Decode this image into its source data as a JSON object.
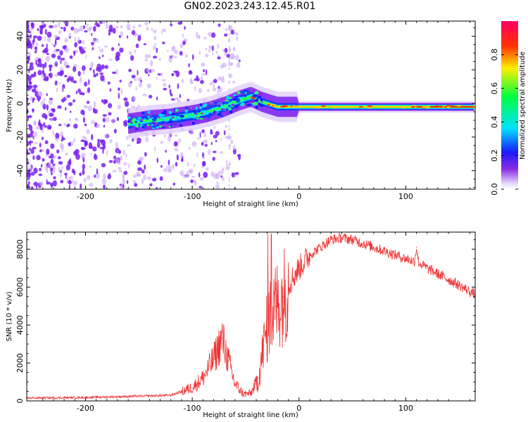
{
  "title": "GN02.2023.243.12.45.R01",
  "colors": {
    "band_main": "#7a1ff0",
    "band_edge": "#c9a8f7",
    "snr_line": "#ee3333",
    "colorbar": [
      "#e8e0ff",
      "#8a2be2",
      "#1a1aff",
      "#00e0ff",
      "#00ff40",
      "#ffee00",
      "#ff3300",
      "#ff0066"
    ]
  },
  "chart_data": [
    {
      "type": "heatmap",
      "id": "spectrogram",
      "title": "",
      "xlabel": "Height of straight line (km)",
      "ylabel": "Frequency (Hz)",
      "xlim": [
        -255,
        165
      ],
      "ylim": [
        -51,
        49
      ],
      "xticks": [
        -200,
        -100,
        0,
        100
      ],
      "yticks": [
        -40,
        -20,
        0,
        20,
        40
      ],
      "colorbar": {
        "label": "Normalized spectral amplitude",
        "range": [
          0,
          1
        ],
        "ticks": [
          0.0,
          0.2,
          0.4,
          0.6,
          0.8
        ]
      },
      "ridge_km": [
        -160,
        -140,
        -120,
        -100,
        -85,
        -70,
        -55,
        -45,
        -35,
        -20,
        0,
        40,
        80,
        100,
        120,
        165
      ],
      "ridge_hz": [
        -12,
        -10,
        -9,
        -7,
        -5,
        -2,
        2,
        4,
        1,
        -2,
        -2,
        -2,
        -2,
        -2,
        -2,
        -2
      ]
    },
    {
      "type": "line",
      "id": "snr",
      "title": "",
      "xlabel": "Height of straight line (km)",
      "ylabel": "SNR (10 * v/v)",
      "xlim": [
        -255,
        165
      ],
      "ylim": [
        0,
        8900
      ],
      "xticks": [
        -200,
        -100,
        0,
        100
      ],
      "yticks": [
        0,
        2000,
        4000,
        6000,
        8000
      ],
      "series": [
        {
          "name": "SNR",
          "x": [
            -255,
            -200,
            -150,
            -120,
            -100,
            -90,
            -80,
            -72,
            -66,
            -60,
            -52,
            -45,
            -38,
            -32,
            -28,
            -22,
            -15,
            -8,
            0,
            10,
            20,
            30,
            40,
            50,
            60,
            70,
            80,
            90,
            100,
            108,
            110,
            112,
            120,
            130,
            140,
            150,
            165
          ],
          "y": [
            150,
            180,
            250,
            300,
            700,
            1200,
            2200,
            3300,
            2100,
            900,
            350,
            400,
            1200,
            3300,
            4300,
            5000,
            5500,
            6300,
            7000,
            7700,
            8100,
            8500,
            8600,
            8500,
            8300,
            8100,
            7900,
            7700,
            7500,
            7350,
            8100,
            7300,
            7000,
            6700,
            6400,
            6100,
            5600
          ]
        }
      ]
    }
  ]
}
